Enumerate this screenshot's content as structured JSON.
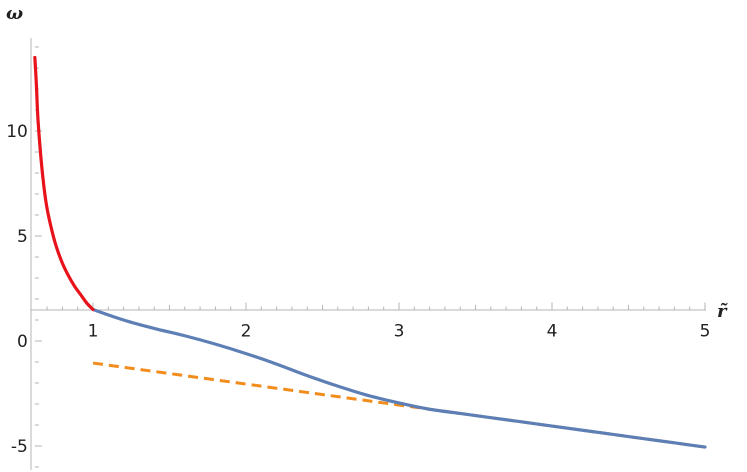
{
  "chart_data": {
    "type": "line",
    "xlabel": "r̃",
    "ylabel": "ω",
    "xlim": [
      0.62,
      5.1
    ],
    "ylim": [
      -6.1,
      14.6
    ],
    "x_axis_crosses_y_at": 1.5,
    "y_axis_at_x": 0.62,
    "x_ticks": [
      1,
      2,
      3,
      4,
      5
    ],
    "y_ticks": [
      -5,
      0,
      5,
      10
    ],
    "x_tick_labels": [
      "1",
      "2",
      "3",
      "4",
      "5"
    ],
    "y_tick_labels": [
      "-5",
      "0",
      "5",
      "10"
    ],
    "grid": false,
    "legend": "none",
    "series": [
      {
        "color": "#e8121a",
        "style": "solid",
        "x": [
          0.62,
          0.63,
          0.64,
          0.66,
          0.68,
          0.7,
          0.73,
          0.76,
          0.8,
          0.84,
          0.88,
          0.92,
          0.96,
          1.0
        ],
        "y": [
          13.5,
          12.2,
          10.6,
          8.7,
          7.3,
          6.3,
          5.3,
          4.5,
          3.7,
          3.1,
          2.6,
          2.2,
          1.8,
          1.5
        ]
      },
      {
        "color": "#5d7fb5",
        "style": "solid",
        "x": [
          1.0,
          1.2,
          1.4,
          1.6,
          1.8,
          2.0,
          2.2,
          2.4,
          2.6,
          2.8,
          3.0,
          3.2,
          3.4,
          3.6,
          3.8,
          4.0,
          4.2,
          4.4,
          4.6,
          4.8,
          5.0
        ],
        "y": [
          1.5,
          1.0,
          0.6,
          0.25,
          -0.15,
          -0.6,
          -1.1,
          -1.65,
          -2.15,
          -2.6,
          -2.95,
          -3.25,
          -3.45,
          -3.65,
          -3.85,
          -4.05,
          -4.25,
          -4.45,
          -4.65,
          -4.85,
          -5.05
        ]
      },
      {
        "color": "#f28c1c",
        "style": "dashed",
        "x": [
          1.0,
          5.0
        ],
        "y": [
          -1.05,
          -5.05
        ]
      }
    ]
  }
}
